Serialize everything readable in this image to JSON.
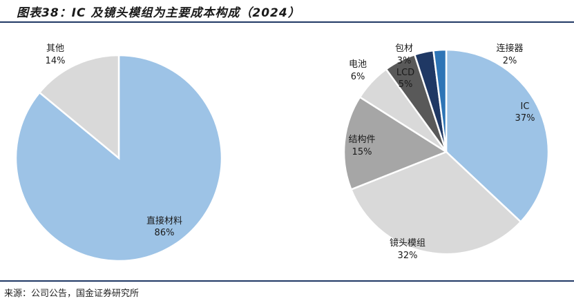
{
  "figure": {
    "title": "图表38：IC 及镜头模组为主要成本构成（2024）",
    "source": "来源：公司公告，国金证券研究所"
  },
  "chart_data": [
    {
      "type": "pie",
      "title": "",
      "slices": [
        {
          "label": "直接材料",
          "value": 86,
          "value_label": "86%",
          "color": "#9dc3e6"
        },
        {
          "label": "其他",
          "value": 14,
          "value_label": "14%",
          "color": "#d9d9d9"
        }
      ]
    },
    {
      "type": "pie",
      "title": "",
      "slices": [
        {
          "label": "IC",
          "value": 37,
          "value_label": "37%",
          "color": "#9dc3e6"
        },
        {
          "label": "镜头模组",
          "value": 32,
          "value_label": "32%",
          "color": "#d9d9d9"
        },
        {
          "label": "结构件",
          "value": 15,
          "value_label": "15%",
          "color": "#a6a6a6"
        },
        {
          "label": "电池",
          "value": 6,
          "value_label": "6%",
          "color": "#d9d9d9"
        },
        {
          "label": "LCD",
          "value": 5,
          "value_label": "5%",
          "color": "#595959"
        },
        {
          "label": "包材",
          "value": 3,
          "value_label": "3%",
          "color": "#1f3864"
        },
        {
          "label": "连接器",
          "value": 2,
          "value_label": "2%",
          "color": "#2e75b6"
        }
      ]
    }
  ]
}
